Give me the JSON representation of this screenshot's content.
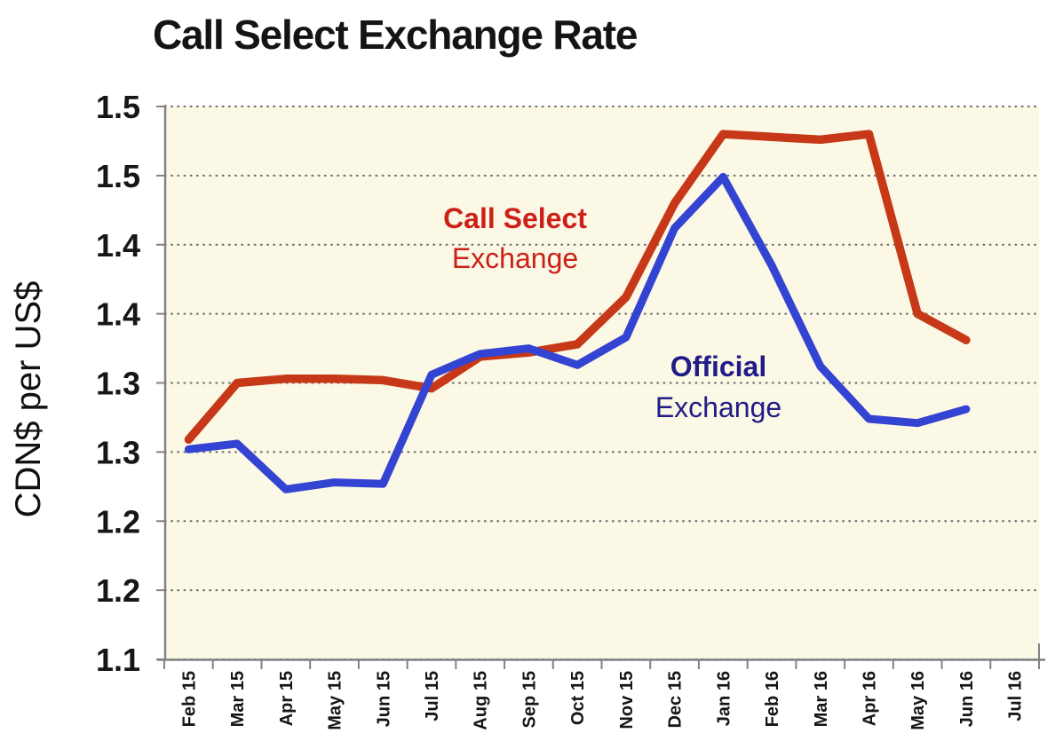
{
  "header": {
    "title": "Call Select Exchange Rate"
  },
  "chart_data": {
    "type": "line",
    "title": "Call Select Exchange Rate",
    "xlabel": "",
    "ylabel": "CDN$ per US$",
    "categories": [
      "Feb 15",
      "Mar 15",
      "Apr 15",
      "May 15",
      "Jun 15",
      "Jul 15",
      "Aug 15",
      "Sep 15",
      "Oct 15",
      "Nov 15",
      "Dec 15",
      "Jan 16",
      "Feb 16",
      "Mar 16",
      "Apr 16",
      "May 16",
      "Jun 16",
      "Jul 16"
    ],
    "series": [
      {
        "name": "Call Select Exchange",
        "color": "#C73818",
        "line_width": 9.5,
        "values": [
          1.259,
          1.3,
          1.303,
          1.303,
          1.302,
          1.296,
          1.319,
          1.322,
          1.328,
          1.362,
          1.43,
          1.48,
          1.478,
          1.476,
          1.48,
          1.35,
          1.331,
          null
        ]
      },
      {
        "name": "Official Exchange",
        "color": "#3444D2",
        "line_width": 9,
        "values": [
          1.252,
          1.256,
          1.223,
          1.228,
          1.227,
          1.306,
          1.321,
          1.325,
          1.313,
          1.333,
          1.412,
          1.449,
          1.385,
          1.312,
          1.274,
          1.271,
          1.281,
          null
        ]
      }
    ],
    "ylim": [
      1.1,
      1.5
    ],
    "y_major_unit": 0.05,
    "y_ticks": {
      "values": [
        1.5,
        1.45,
        1.4,
        1.35,
        1.3,
        1.25,
        1.2,
        1.15,
        1.1
      ],
      "labels": [
        "1.5",
        "1.5",
        "1.4",
        "1.4",
        "1.3",
        "1.3",
        "1.2",
        "1.2",
        "1.1"
      ]
    },
    "grid": "horizontal-dotted",
    "legend": "none",
    "plot_background": "#FBF8E5",
    "axis_color": "#828282",
    "gridline_color": "#6E6E6E",
    "tick_label_color": "#161616",
    "annotations": [
      {
        "id": "call-select",
        "line1": "Call Select",
        "line2": "Exchange",
        "color": "#CC2018"
      },
      {
        "id": "official",
        "line1": "Official",
        "line2": "Exchange",
        "color": "#211C87"
      }
    ]
  }
}
